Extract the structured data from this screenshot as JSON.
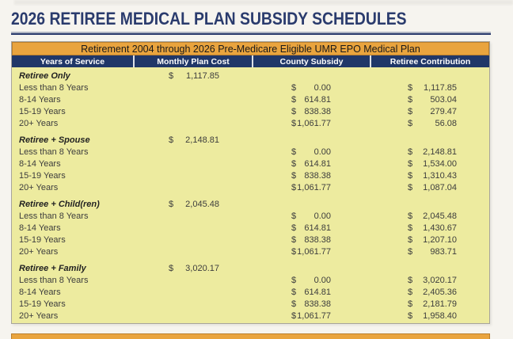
{
  "page": {
    "title": "2026 RETIREE MEDICAL PLAN SUBSIDY SCHEDULES"
  },
  "table": {
    "banner": "Retirement 2004 through 2026 Pre-Medicare Eligible UMR EPO Medical Plan",
    "columns": [
      "Years of Service",
      "Monthly Plan Cost",
      "County Subsidy",
      "Retiree Contribution"
    ],
    "currency_symbol": "$",
    "sections": [
      {
        "label": "Retiree Only",
        "monthly_plan_cost": "1,117.85",
        "rows": [
          {
            "years": "Less than 8 Years",
            "county_subsidy": "0.00",
            "retiree_contribution": "1,117.85"
          },
          {
            "years": "8-14 Years",
            "county_subsidy": "614.81",
            "retiree_contribution": "503.04"
          },
          {
            "years": "15-19 Years",
            "county_subsidy": "838.38",
            "retiree_contribution": "279.47"
          },
          {
            "years": "20+ Years",
            "county_subsidy": "1,061.77",
            "retiree_contribution": "56.08"
          }
        ]
      },
      {
        "label": "Retiree + Spouse",
        "monthly_plan_cost": "2,148.81",
        "rows": [
          {
            "years": "Less than 8 Years",
            "county_subsidy": "0.00",
            "retiree_contribution": "2,148.81"
          },
          {
            "years": "8-14 Years",
            "county_subsidy": "614.81",
            "retiree_contribution": "1,534.00"
          },
          {
            "years": "15-19 Years",
            "county_subsidy": "838.38",
            "retiree_contribution": "1,310.43"
          },
          {
            "years": "20+ Years",
            "county_subsidy": "1,061.77",
            "retiree_contribution": "1,087.04"
          }
        ]
      },
      {
        "label": "Retiree + Child(ren)",
        "monthly_plan_cost": "2,045.48",
        "rows": [
          {
            "years": "Less than 8 Years",
            "county_subsidy": "0.00",
            "retiree_contribution": "2,045.48"
          },
          {
            "years": "8-14 Years",
            "county_subsidy": "614.81",
            "retiree_contribution": "1,430.67"
          },
          {
            "years": "15-19 Years",
            "county_subsidy": "838.38",
            "retiree_contribution": "1,207.10"
          },
          {
            "years": "20+ Years",
            "county_subsidy": "1,061.77",
            "retiree_contribution": "983.71"
          }
        ]
      },
      {
        "label": "Retiree + Family",
        "monthly_plan_cost": "3,020.17",
        "rows": [
          {
            "years": "Less than 8 Years",
            "county_subsidy": "0.00",
            "retiree_contribution": "3,020.17"
          },
          {
            "years": "8-14 Years",
            "county_subsidy": "614.81",
            "retiree_contribution": "2,405.36"
          },
          {
            "years": "15-19 Years",
            "county_subsidy": "838.38",
            "retiree_contribution": "2,181.79"
          },
          {
            "years": "20+ Years",
            "county_subsidy": "1,061.77",
            "retiree_contribution": "1,958.40"
          }
        ]
      }
    ]
  },
  "colors": {
    "navy": "#203768",
    "title_navy": "#2a3b6d",
    "orange": "#e9a43e",
    "orange_border": "#b97f2e",
    "body_yellow": "#edeb9f",
    "page_bg": "#f6f4ef",
    "body_text": "#3d3d3d"
  }
}
